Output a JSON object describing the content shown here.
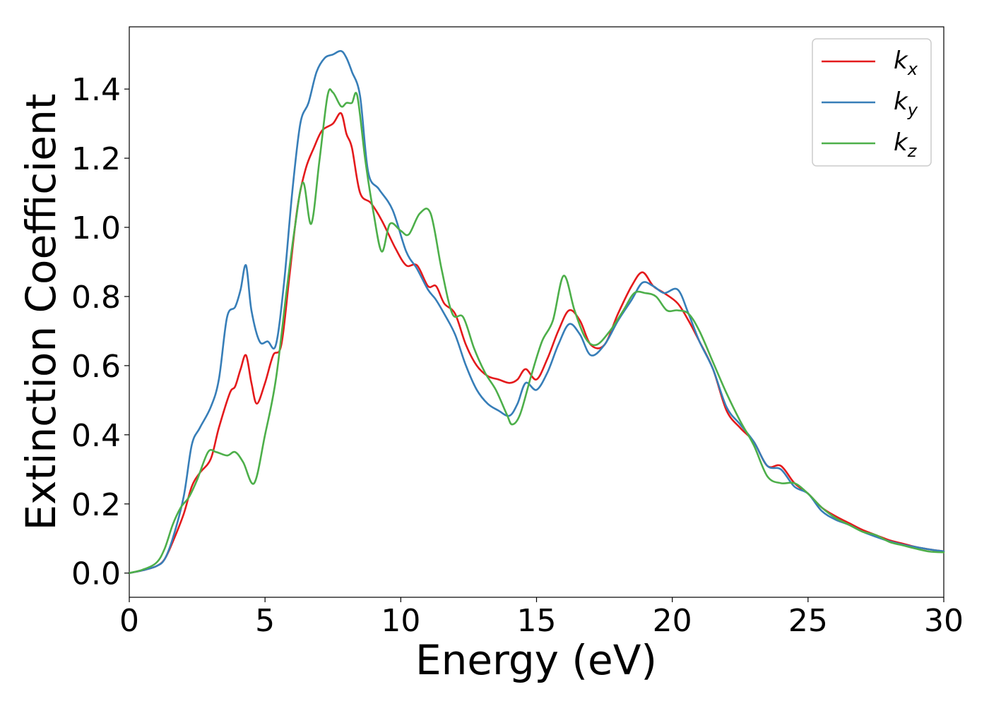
{
  "chart_data": {
    "type": "line",
    "xlabel": "Energy (eV)",
    "ylabel": "Extinction Coefficient",
    "xlim": [
      0,
      30
    ],
    "ylim": [
      -0.07,
      1.58
    ],
    "xticks": [
      0,
      5,
      10,
      15,
      20,
      25,
      30
    ],
    "yticks": [
      0.0,
      0.2,
      0.4,
      0.6,
      0.8,
      1.0,
      1.2,
      1.4
    ],
    "grid": false,
    "legend_position": "top-right",
    "series": [
      {
        "name": "k",
        "subscript": "x",
        "color": "#e41a1c",
        "x": [
          0,
          0.5,
          1,
          1.3,
          1.6,
          2,
          2.3,
          2.6,
          3,
          3.3,
          3.7,
          3.9,
          4.1,
          4.3,
          4.5,
          4.7,
          5,
          5.3,
          5.6,
          5.9,
          6.2,
          6.5,
          6.8,
          7.1,
          7.5,
          7.8,
          8,
          8.2,
          8.5,
          8.9,
          9.3,
          9.8,
          10.2,
          10.6,
          11,
          11.3,
          11.6,
          12,
          12.4,
          12.8,
          13.2,
          13.6,
          14,
          14.3,
          14.6,
          15,
          15.4,
          15.8,
          16.2,
          16.6,
          17,
          17.5,
          18,
          18.5,
          18.9,
          19.3,
          19.7,
          20.2,
          20.6,
          21,
          21.5,
          22,
          22.5,
          23,
          23.5,
          24,
          24.5,
          25,
          25.5,
          26,
          26.5,
          27,
          27.5,
          28,
          28.5,
          29,
          29.5,
          30
        ],
        "y": [
          0,
          0.008,
          0.02,
          0.04,
          0.09,
          0.17,
          0.25,
          0.29,
          0.33,
          0.42,
          0.52,
          0.54,
          0.59,
          0.63,
          0.55,
          0.49,
          0.55,
          0.63,
          0.66,
          0.86,
          1.06,
          1.17,
          1.23,
          1.28,
          1.3,
          1.33,
          1.27,
          1.23,
          1.1,
          1.07,
          1.02,
          0.94,
          0.89,
          0.89,
          0.83,
          0.83,
          0.78,
          0.75,
          0.66,
          0.6,
          0.57,
          0.56,
          0.55,
          0.56,
          0.59,
          0.56,
          0.62,
          0.7,
          0.76,
          0.73,
          0.66,
          0.66,
          0.75,
          0.83,
          0.87,
          0.83,
          0.81,
          0.78,
          0.73,
          0.67,
          0.59,
          0.47,
          0.42,
          0.38,
          0.31,
          0.31,
          0.26,
          0.23,
          0.19,
          0.165,
          0.145,
          0.125,
          0.11,
          0.095,
          0.085,
          0.075,
          0.068,
          0.063
        ]
      },
      {
        "name": "k",
        "subscript": "y",
        "color": "#377eb8",
        "x": [
          0,
          0.5,
          1,
          1.3,
          1.6,
          2,
          2.3,
          2.6,
          3,
          3.3,
          3.6,
          3.9,
          4.1,
          4.3,
          4.5,
          4.8,
          5.1,
          5.4,
          5.7,
          6,
          6.3,
          6.6,
          6.9,
          7.2,
          7.5,
          7.8,
          8,
          8.2,
          8.5,
          8.8,
          9.2,
          9.7,
          10.2,
          10.6,
          11,
          11.3,
          11.6,
          12,
          12.4,
          12.8,
          13.2,
          13.6,
          14,
          14.3,
          14.6,
          15,
          15.4,
          15.8,
          16.2,
          16.6,
          17,
          17.5,
          18,
          18.5,
          18.9,
          19.3,
          19.7,
          20.2,
          20.6,
          21,
          21.5,
          22,
          22.5,
          23,
          23.5,
          24,
          24.5,
          25,
          25.5,
          26,
          26.5,
          27,
          27.5,
          28,
          28.5,
          29,
          29.5,
          30
        ],
        "y": [
          0,
          0.008,
          0.02,
          0.04,
          0.1,
          0.22,
          0.37,
          0.42,
          0.48,
          0.56,
          0.74,
          0.77,
          0.82,
          0.89,
          0.76,
          0.67,
          0.67,
          0.66,
          0.84,
          1.1,
          1.3,
          1.36,
          1.45,
          1.49,
          1.5,
          1.51,
          1.49,
          1.45,
          1.38,
          1.16,
          1.11,
          1.05,
          0.93,
          0.88,
          0.82,
          0.79,
          0.75,
          0.69,
          0.6,
          0.53,
          0.49,
          0.47,
          0.455,
          0.49,
          0.55,
          0.53,
          0.58,
          0.66,
          0.72,
          0.69,
          0.63,
          0.66,
          0.73,
          0.79,
          0.84,
          0.83,
          0.81,
          0.82,
          0.75,
          0.67,
          0.59,
          0.48,
          0.43,
          0.38,
          0.31,
          0.3,
          0.25,
          0.23,
          0.18,
          0.155,
          0.14,
          0.12,
          0.105,
          0.092,
          0.082,
          0.075,
          0.068,
          0.063
        ]
      },
      {
        "name": "k",
        "subscript": "z",
        "color": "#4daf4a",
        "x": [
          0,
          0.5,
          1,
          1.3,
          1.6,
          1.9,
          2.2,
          2.5,
          2.9,
          3.2,
          3.6,
          3.9,
          4.2,
          4.6,
          5,
          5.4,
          5.8,
          6.1,
          6.4,
          6.7,
          7,
          7.3,
          7.5,
          7.8,
          8,
          8.2,
          8.4,
          8.7,
          9,
          9.3,
          9.6,
          10,
          10.3,
          10.7,
          11.1,
          11.5,
          11.9,
          12.3,
          12.7,
          13.1,
          13.5,
          13.9,
          14.1,
          14.4,
          14.8,
          15.2,
          15.6,
          16,
          16.4,
          16.8,
          17.2,
          17.7,
          18.2,
          18.6,
          19,
          19.4,
          19.8,
          20.2,
          20.6,
          21,
          21.5,
          22,
          22.5,
          23,
          23.5,
          24,
          24.5,
          25,
          25.5,
          26,
          26.5,
          27,
          27.5,
          28,
          28.5,
          29,
          29.5,
          30
        ],
        "y": [
          0,
          0.01,
          0.03,
          0.07,
          0.14,
          0.19,
          0.22,
          0.27,
          0.35,
          0.35,
          0.34,
          0.35,
          0.32,
          0.26,
          0.4,
          0.56,
          0.82,
          1.0,
          1.13,
          1.01,
          1.19,
          1.38,
          1.39,
          1.35,
          1.36,
          1.36,
          1.38,
          1.19,
          1.04,
          0.93,
          1.01,
          0.99,
          0.98,
          1.04,
          1.04,
          0.88,
          0.75,
          0.74,
          0.65,
          0.58,
          0.53,
          0.46,
          0.43,
          0.46,
          0.57,
          0.67,
          0.73,
          0.86,
          0.76,
          0.68,
          0.66,
          0.7,
          0.76,
          0.81,
          0.81,
          0.8,
          0.76,
          0.76,
          0.75,
          0.7,
          0.61,
          0.52,
          0.44,
          0.37,
          0.28,
          0.26,
          0.26,
          0.23,
          0.19,
          0.16,
          0.14,
          0.12,
          0.11,
          0.09,
          0.08,
          0.07,
          0.062,
          0.06
        ]
      }
    ]
  }
}
